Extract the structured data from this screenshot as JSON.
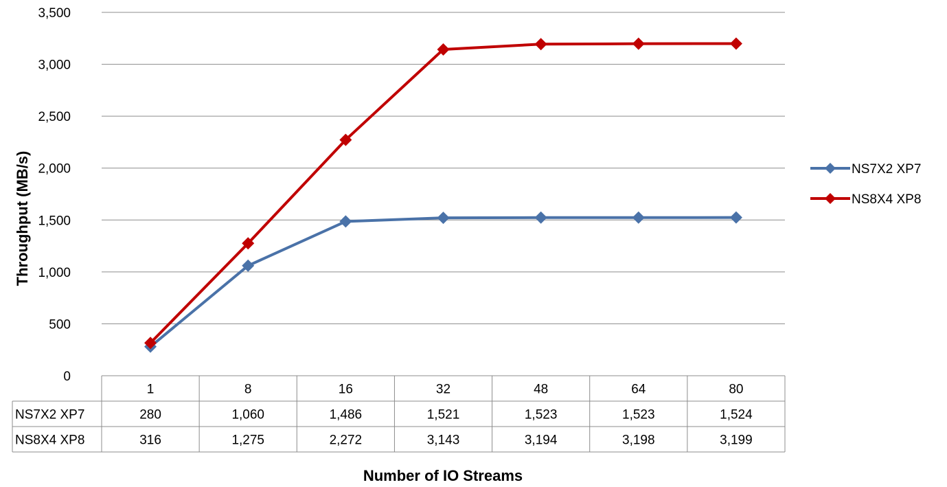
{
  "chart_data": {
    "type": "line",
    "categories": [
      "1",
      "8",
      "16",
      "32",
      "48",
      "64",
      "80"
    ],
    "series": [
      {
        "name": "NS7X2 XP7",
        "values": [
          280,
          1060,
          1486,
          1521,
          1523,
          1523,
          1524
        ],
        "color": "#4a72a8"
      },
      {
        "name": "NS8X4 XP8",
        "values": [
          316,
          1275,
          2272,
          3143,
          3194,
          3198,
          3199
        ],
        "color": "#c00000"
      }
    ],
    "ylim": [
      0,
      3500
    ],
    "yticks": [
      0,
      500,
      1000,
      1500,
      2000,
      2500,
      3000,
      3500
    ],
    "ytick_labels": [
      "0",
      "500",
      "1,000",
      "1,500",
      "2,000",
      "2,500",
      "3,000",
      "3,500"
    ],
    "ylabel": "Throughput (MB/s)",
    "xlabel": "Number of IO Streams",
    "grid": true,
    "legend_position": "right",
    "data_table": {
      "rows": [
        {
          "name": "NS7X2 XP7",
          "cells": [
            "280",
            "1,060",
            "1,486",
            "1,521",
            "1,523",
            "1,523",
            "1,524"
          ]
        },
        {
          "name": "NS8X4 XP8",
          "cells": [
            "316",
            "1,275",
            "2,272",
            "3,143",
            "3,194",
            "3,198",
            "3,199"
          ]
        }
      ]
    }
  }
}
